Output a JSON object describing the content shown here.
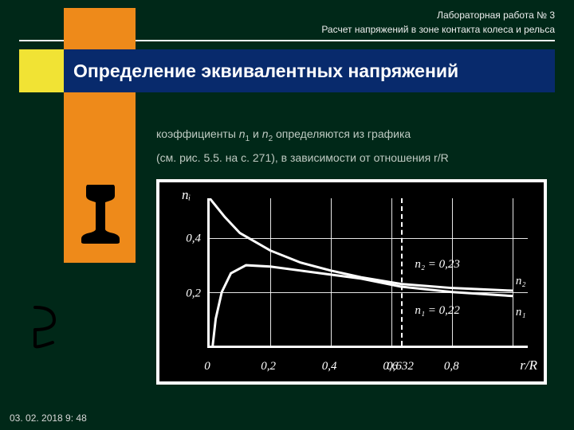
{
  "header": {
    "line1": "Лабораторная работа № 3",
    "line2": "Расчет напряжений в зоне контакта колеса и рельса"
  },
  "title": "Определение эквивалентных напряжений",
  "body": {
    "line1_pre": "коэффициенты ",
    "n1": "n",
    "n1_sub": "1",
    "and": " и ",
    "n2": "n",
    "n2_sub": "2",
    "line1_post": " определяются из графика",
    "line2": "(см. рис. 5.5. на с. 271), в зависимости от отношения r/R"
  },
  "chart": {
    "type": "line",
    "y_label": "nᵢ",
    "x_label": "r/R",
    "xlim": [
      0,
      1.05
    ],
    "ylim": [
      0,
      0.55
    ],
    "y_ticks": [
      0.2,
      0.4
    ],
    "y_tick_labels": [
      "0,2",
      "0,4"
    ],
    "x_ticks": [
      0,
      0.2,
      0.4,
      0.6,
      0.8
    ],
    "x_tick_labels": [
      "0",
      "0,2",
      "0,4",
      "0,6",
      "0,8"
    ],
    "grid_v": [
      0.2,
      0.4,
      0.6,
      0.8,
      1.0
    ],
    "grid_h": [
      0.2,
      0.4
    ],
    "dashed_x": 0.632,
    "dashed_label": "0,632",
    "series": [
      {
        "name": "n1",
        "label": "n₁",
        "points": [
          [
            0.01,
            0.0
          ],
          [
            0.02,
            0.1
          ],
          [
            0.04,
            0.2
          ],
          [
            0.07,
            0.27
          ],
          [
            0.12,
            0.3
          ],
          [
            0.2,
            0.295
          ],
          [
            0.3,
            0.28
          ],
          [
            0.4,
            0.265
          ],
          [
            0.5,
            0.25
          ],
          [
            0.632,
            0.22
          ],
          [
            0.8,
            0.2
          ],
          [
            1.0,
            0.185
          ]
        ],
        "end_annotation": "n₁ = 0,22"
      },
      {
        "name": "n2",
        "label": "n₂",
        "points": [
          [
            0.0,
            0.55
          ],
          [
            0.05,
            0.48
          ],
          [
            0.1,
            0.42
          ],
          [
            0.2,
            0.355
          ],
          [
            0.3,
            0.31
          ],
          [
            0.4,
            0.28
          ],
          [
            0.5,
            0.255
          ],
          [
            0.632,
            0.23
          ],
          [
            0.8,
            0.215
          ],
          [
            1.0,
            0.205
          ]
        ],
        "end_annotation": "n₂ = 0,23"
      }
    ],
    "colors": {
      "background": "#000000",
      "border": "#ffffff",
      "axis": "#ffffff",
      "grid": "#ffffff",
      "curve": "#ffffff",
      "text": "#ffffff"
    },
    "line_width": 3
  },
  "timestamp": "03. 02. 2018 9: 48",
  "palette": {
    "page_bg": "#002818",
    "orange": "#ee8a1a",
    "yellow": "#f1e334",
    "blue": "#082a6c",
    "body_text": "#bfcac2"
  }
}
